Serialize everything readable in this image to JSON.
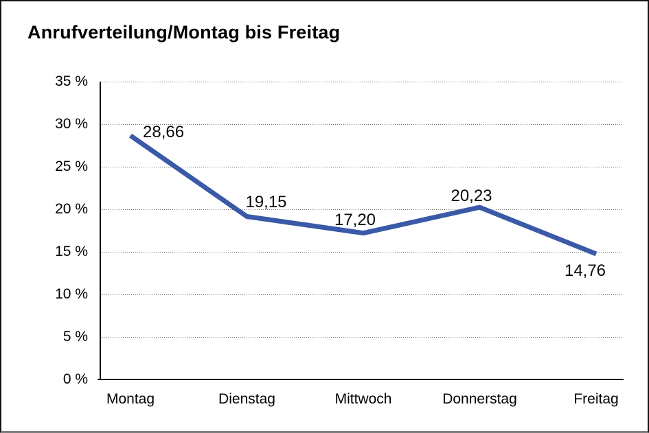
{
  "chart_data": {
    "type": "line",
    "title": "Anrufverteilung/Montag bis Freitag",
    "categories": [
      "Montag",
      "Dienstag",
      "Mittwoch",
      "Donnerstag",
      "Freitag"
    ],
    "series": [
      {
        "name": "Anrufverteilung",
        "values": [
          28.66,
          19.15,
          17.2,
          20.23,
          14.76
        ]
      }
    ],
    "value_labels": [
      "28,66",
      "19,15",
      "17,20",
      "20,23",
      "14,76"
    ],
    "xlabel": "",
    "ylabel": "",
    "ylim": [
      0,
      35
    ],
    "yticks": [
      0,
      5,
      10,
      15,
      20,
      25,
      30,
      35
    ],
    "ytick_labels": [
      "0 %",
      "5 %",
      "10 %",
      "15 %",
      "20 %",
      "25 %",
      "30 %",
      "35 %"
    ],
    "grid": "horizontal-dotted",
    "legend": "none",
    "colors": {
      "line": "#3a5aa8",
      "grid": "#6e6e6e",
      "axis": "#000000",
      "text": "#000000",
      "frame_border": "#141414",
      "frame_bottom": "#7f7f7f"
    }
  }
}
